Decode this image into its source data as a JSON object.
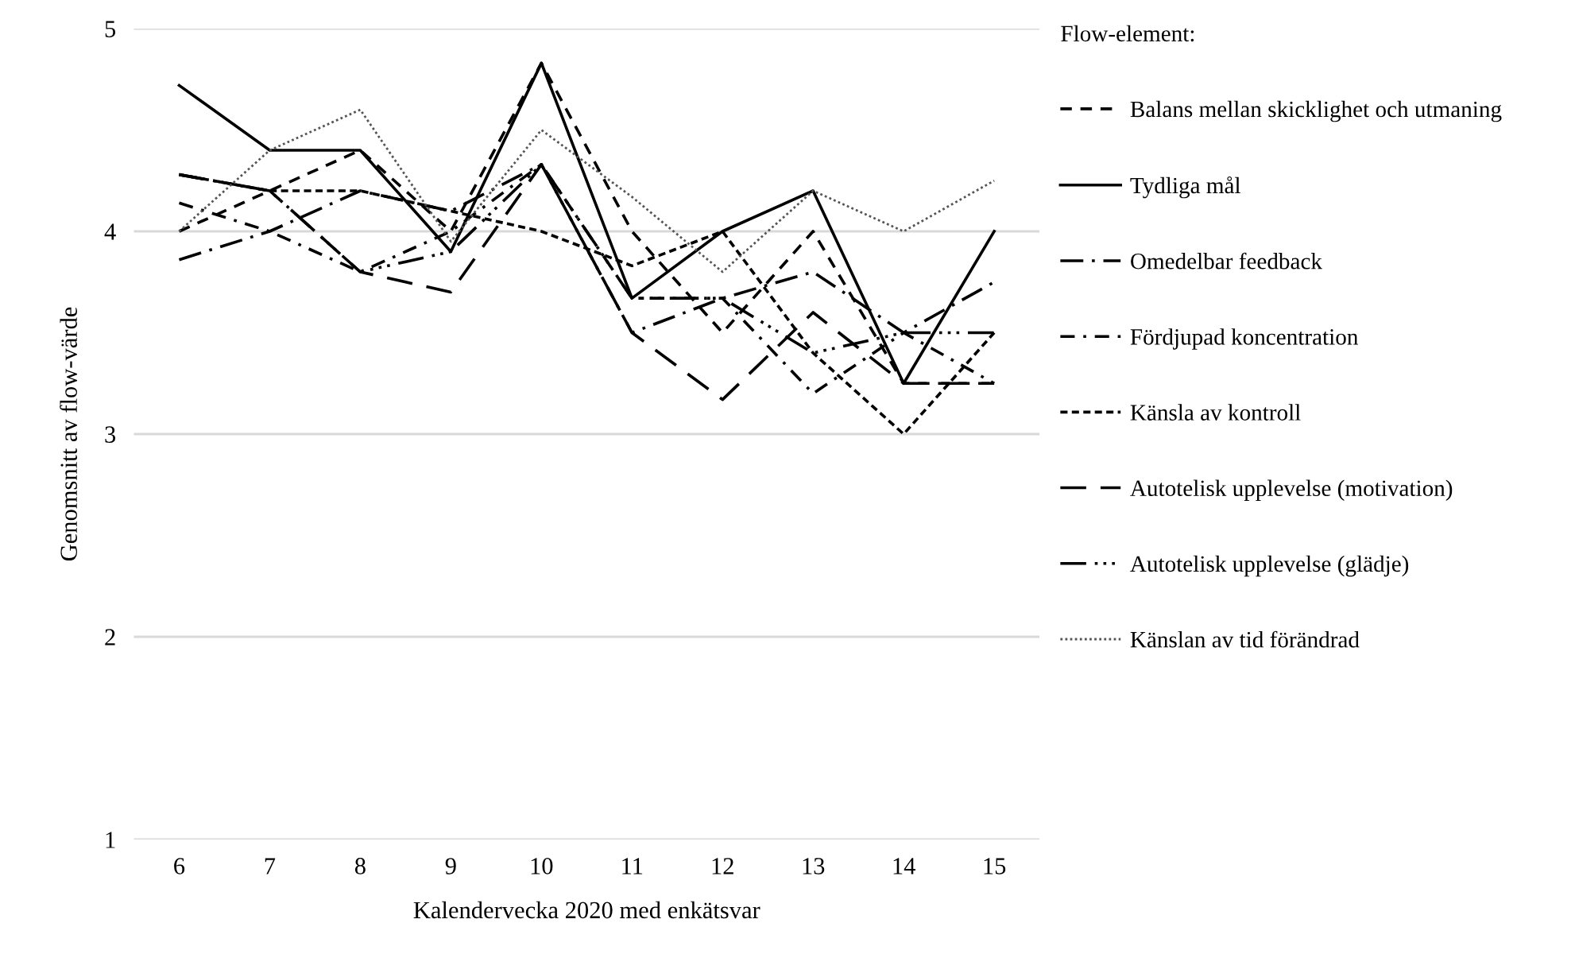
{
  "chart_data": {
    "type": "line",
    "xlabel": "Kalendervecka 2020 med enkätsvar",
    "ylabel": "Genomsnitt av flow-värde",
    "legend_title": "Flow-element:",
    "categories": [
      "6",
      "7",
      "8",
      "9",
      "10",
      "11",
      "12",
      "13",
      "14",
      "15"
    ],
    "ylim": [
      1,
      5
    ],
    "yticks": [
      1,
      2,
      3,
      4,
      5
    ],
    "grid": "y",
    "legend": "right",
    "marker": "none",
    "series": [
      {
        "name": "Balans mellan skicklighet och utmaning",
        "color": "#000000",
        "line_style": "dashed",
        "values": [
          4.0,
          4.2,
          4.4,
          4.0,
          4.83,
          4.0,
          3.5,
          4.0,
          3.25,
          3.25
        ]
      },
      {
        "name": "Tydliga mål",
        "color": "#000000",
        "line_style": "solid",
        "values": [
          4.72,
          4.4,
          4.4,
          3.9,
          4.83,
          3.67,
          4.0,
          4.2,
          3.25,
          4.0
        ]
      },
      {
        "name": "Omedelbar feedback",
        "color": "#000000",
        "line_style": "dashdot",
        "values": [
          3.86,
          4.0,
          4.2,
          4.1,
          4.33,
          3.5,
          3.67,
          3.8,
          3.5,
          3.75
        ]
      },
      {
        "name": "Fördjupad koncentration",
        "color": "#000000",
        "line_style": "dashdotthin",
        "values": [
          4.14,
          4.0,
          3.8,
          4.0,
          4.33,
          3.67,
          3.67,
          3.2,
          3.5,
          3.25
        ]
      },
      {
        "name": "Känsla av kontroll",
        "color": "#000000",
        "line_style": "shortdash",
        "values": [
          4.28,
          4.2,
          4.2,
          4.1,
          4.0,
          3.83,
          4.0,
          3.4,
          3.0,
          3.5
        ]
      },
      {
        "name": "Autotelisk upplevelse (motivation)",
        "color": "#000000",
        "line_style": "longdash",
        "values": [
          4.28,
          4.2,
          3.8,
          3.7,
          4.33,
          3.5,
          3.17,
          3.6,
          3.25,
          3.25
        ]
      },
      {
        "name": "Autotelisk upplevelse (glädje)",
        "color": "#000000",
        "line_style": "dashdotdot",
        "values": [
          4.28,
          4.2,
          3.8,
          3.9,
          4.33,
          3.67,
          3.67,
          3.4,
          3.5,
          3.5
        ]
      },
      {
        "name": "Känslan av tid förändrad",
        "color": "#555555",
        "line_style": "dotted",
        "values": [
          4.0,
          4.4,
          4.6,
          3.95,
          4.5,
          4.17,
          3.8,
          4.2,
          4.0,
          4.25
        ]
      }
    ]
  }
}
